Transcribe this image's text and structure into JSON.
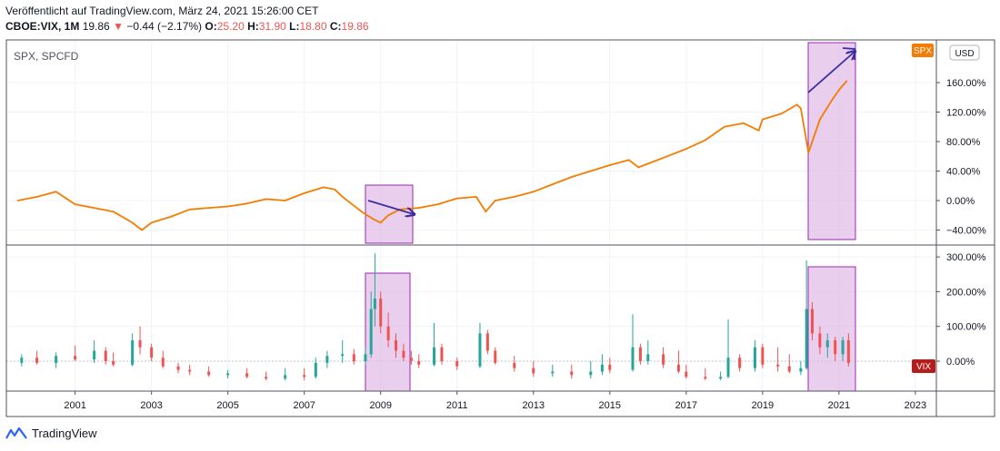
{
  "header": {
    "published_line": "Veröffentlicht auf TradingView.com, März 24, 2021 15:26:00 CET",
    "symbol": "CBOE:VIX, 1M",
    "last": "19.86",
    "change": "−0.44 (−2.17%)",
    "o_label": "O:",
    "o_value": "25.20",
    "h_label": "H:",
    "h_value": "31.90",
    "l_label": "L:",
    "l_value": "18.80",
    "c_label": "C:",
    "c_value": "19.86"
  },
  "top_pane": {
    "legend": "SPX, SPCFD",
    "currency_button": "USD",
    "price_tag": "SPX"
  },
  "bottom_pane": {
    "price_tag": "VIX"
  },
  "footer": {
    "brand": "TradingView"
  },
  "colors": {
    "spx_line": "#f57c00",
    "candle_up": "#26a69a",
    "candle_down": "#ef5350",
    "highlight_fill": "#e1bee7",
    "highlight_border": "#9c27b0",
    "arrow": "#3b2fa0",
    "vix_tag": "#b71c1c",
    "spx_tag": "#f57c00"
  },
  "chart_data": [
    {
      "type": "line",
      "title": "SPX, SPCFD",
      "x": [
        1999.5,
        2000.0,
        2000.5,
        2001.0,
        2001.5,
        2002.0,
        2002.5,
        2002.75,
        2003.0,
        2003.5,
        2004.0,
        2004.5,
        2005.0,
        2005.5,
        2006.0,
        2006.5,
        2007.0,
        2007.5,
        2007.8,
        2008.0,
        2008.5,
        2008.8,
        2009.0,
        2009.2,
        2009.5,
        2010.0,
        2010.5,
        2011.0,
        2011.5,
        2011.75,
        2012.0,
        2012.5,
        2013.0,
        2013.5,
        2014.0,
        2014.5,
        2015.0,
        2015.5,
        2015.75,
        2016.0,
        2016.5,
        2017.0,
        2017.5,
        2018.0,
        2018.5,
        2018.9,
        2019.0,
        2019.5,
        2019.9,
        2020.0,
        2020.2,
        2020.5,
        2020.8,
        2021.0,
        2021.2
      ],
      "series": [
        {
          "values": [
            0,
            5,
            12,
            -5,
            -10,
            -15,
            -30,
            -40,
            -30,
            -22,
            -12,
            -10,
            -8,
            -4,
            2,
            0,
            10,
            18,
            15,
            5,
            -15,
            -25,
            -30,
            -20,
            -12,
            -10,
            -5,
            3,
            5,
            -15,
            0,
            5,
            12,
            22,
            32,
            40,
            48,
            55,
            45,
            50,
            60,
            70,
            82,
            100,
            105,
            95,
            110,
            118,
            130,
            125,
            65,
            110,
            135,
            150,
            162
          ]
        }
      ],
      "y_ticks": [
        "−40.00%",
        "0.00%",
        "40.00%",
        "80.00%",
        "120.00%",
        "160.00%"
      ],
      "ylim": [
        -50,
        200
      ]
    },
    {
      "type": "bar",
      "title": "CBOE:VIX, 1M",
      "x_ticks": [
        "2001",
        "2003",
        "2005",
        "2007",
        "2009",
        "2011",
        "2013",
        "2015",
        "2017",
        "2019",
        "2021",
        "2023"
      ],
      "y_ticks": [
        "0.00%",
        "100.00%",
        "200.00%",
        "300.00%"
      ],
      "ylim": [
        -95,
        305
      ],
      "candles": [
        {
          "t": 1999.6,
          "o": -5,
          "h": 20,
          "l": -15,
          "c": 10
        },
        {
          "t": 2000.0,
          "o": 10,
          "h": 30,
          "l": -10,
          "c": -5
        },
        {
          "t": 2000.5,
          "o": -5,
          "h": 25,
          "l": -20,
          "c": 15
        },
        {
          "t": 2001.0,
          "o": 15,
          "h": 45,
          "l": 0,
          "c": 5
        },
        {
          "t": 2001.5,
          "o": 5,
          "h": 60,
          "l": -5,
          "c": 30
        },
        {
          "t": 2001.8,
          "o": 30,
          "h": 40,
          "l": -10,
          "c": 0
        },
        {
          "t": 2002.0,
          "o": 0,
          "h": 25,
          "l": -15,
          "c": -10
        },
        {
          "t": 2002.5,
          "o": -10,
          "h": 80,
          "l": -15,
          "c": 60
        },
        {
          "t": 2002.7,
          "o": 60,
          "h": 100,
          "l": 20,
          "c": 40
        },
        {
          "t": 2003.0,
          "o": 40,
          "h": 50,
          "l": 0,
          "c": 10
        },
        {
          "t": 2003.3,
          "o": 10,
          "h": 30,
          "l": -20,
          "c": -15
        },
        {
          "t": 2003.7,
          "o": -15,
          "h": -5,
          "l": -35,
          "c": -25
        },
        {
          "t": 2004.0,
          "o": -25,
          "h": -10,
          "l": -40,
          "c": -30
        },
        {
          "t": 2004.5,
          "o": -30,
          "h": -15,
          "l": -45,
          "c": -40
        },
        {
          "t": 2005.0,
          "o": -40,
          "h": -25,
          "l": -50,
          "c": -35
        },
        {
          "t": 2005.5,
          "o": -35,
          "h": -20,
          "l": -50,
          "c": -45
        },
        {
          "t": 2006.0,
          "o": -45,
          "h": -30,
          "l": -55,
          "c": -50
        },
        {
          "t": 2006.5,
          "o": -50,
          "h": -20,
          "l": -55,
          "c": -40
        },
        {
          "t": 2007.0,
          "o": -40,
          "h": -20,
          "l": -55,
          "c": -45
        },
        {
          "t": 2007.3,
          "o": -45,
          "h": 10,
          "l": -50,
          "c": -5
        },
        {
          "t": 2007.6,
          "o": -5,
          "h": 30,
          "l": -20,
          "c": 15
        },
        {
          "t": 2008.0,
          "o": 15,
          "h": 60,
          "l": -5,
          "c": 20
        },
        {
          "t": 2008.3,
          "o": 20,
          "h": 35,
          "l": -10,
          "c": 0
        },
        {
          "t": 2008.6,
          "o": 0,
          "h": 40,
          "l": -10,
          "c": 20
        },
        {
          "t": 2008.75,
          "o": 20,
          "h": 200,
          "l": 10,
          "c": 150
        },
        {
          "t": 2008.85,
          "o": 150,
          "h": 310,
          "l": 100,
          "c": 180
        },
        {
          "t": 2009.0,
          "o": 180,
          "h": 200,
          "l": 80,
          "c": 100
        },
        {
          "t": 2009.2,
          "o": 100,
          "h": 140,
          "l": 40,
          "c": 60
        },
        {
          "t": 2009.4,
          "o": 60,
          "h": 80,
          "l": 10,
          "c": 30
        },
        {
          "t": 2009.6,
          "o": 30,
          "h": 50,
          "l": 0,
          "c": 10
        },
        {
          "t": 2009.8,
          "o": 10,
          "h": 30,
          "l": -10,
          "c": 0
        },
        {
          "t": 2010.0,
          "o": 0,
          "h": 20,
          "l": -20,
          "c": -10
        },
        {
          "t": 2010.4,
          "o": -10,
          "h": 110,
          "l": -15,
          "c": 40
        },
        {
          "t": 2010.6,
          "o": 40,
          "h": 50,
          "l": -10,
          "c": 0
        },
        {
          "t": 2011.0,
          "o": 0,
          "h": 10,
          "l": -25,
          "c": -15
        },
        {
          "t": 2011.6,
          "o": -15,
          "h": 110,
          "l": -20,
          "c": 80
        },
        {
          "t": 2011.8,
          "o": 80,
          "h": 90,
          "l": 20,
          "c": 30
        },
        {
          "t": 2012.0,
          "o": 30,
          "h": 40,
          "l": -10,
          "c": -5
        },
        {
          "t": 2012.5,
          "o": -5,
          "h": 15,
          "l": -30,
          "c": -20
        },
        {
          "t": 2013.0,
          "o": -20,
          "h": 0,
          "l": -45,
          "c": -35
        },
        {
          "t": 2013.5,
          "o": -35,
          "h": -10,
          "l": -45,
          "c": -30
        },
        {
          "t": 2014.0,
          "o": -30,
          "h": -10,
          "l": -50,
          "c": -40
        },
        {
          "t": 2014.5,
          "o": -40,
          "h": 0,
          "l": -50,
          "c": -30
        },
        {
          "t": 2014.8,
          "o": -30,
          "h": 20,
          "l": -40,
          "c": -10
        },
        {
          "t": 2015.0,
          "o": -10,
          "h": 10,
          "l": -35,
          "c": -25
        },
        {
          "t": 2015.6,
          "o": -25,
          "h": 135,
          "l": -30,
          "c": 40
        },
        {
          "t": 2015.8,
          "o": 40,
          "h": 50,
          "l": -10,
          "c": 0
        },
        {
          "t": 2016.0,
          "o": 0,
          "h": 60,
          "l": -10,
          "c": 20
        },
        {
          "t": 2016.4,
          "o": 20,
          "h": 40,
          "l": -20,
          "c": -10
        },
        {
          "t": 2016.8,
          "o": -10,
          "h": 30,
          "l": -35,
          "c": -30
        },
        {
          "t": 2017.0,
          "o": -30,
          "h": -10,
          "l": -50,
          "c": -45
        },
        {
          "t": 2017.5,
          "o": -45,
          "h": -20,
          "l": -55,
          "c": -50
        },
        {
          "t": 2017.9,
          "o": -50,
          "h": -30,
          "l": -55,
          "c": -45
        },
        {
          "t": 2018.1,
          "o": -45,
          "h": 120,
          "l": -50,
          "c": 10
        },
        {
          "t": 2018.4,
          "o": 10,
          "h": 20,
          "l": -30,
          "c": -20
        },
        {
          "t": 2018.8,
          "o": -20,
          "h": 60,
          "l": -30,
          "c": 40
        },
        {
          "t": 2019.0,
          "o": 40,
          "h": 50,
          "l": -20,
          "c": -10
        },
        {
          "t": 2019.4,
          "o": -10,
          "h": 40,
          "l": -30,
          "c": -15
        },
        {
          "t": 2019.7,
          "o": -15,
          "h": 20,
          "l": -35,
          "c": -30
        },
        {
          "t": 2020.0,
          "o": -30,
          "h": 0,
          "l": -40,
          "c": -20
        },
        {
          "t": 2020.15,
          "o": -20,
          "h": 290,
          "l": -25,
          "c": 150
        },
        {
          "t": 2020.3,
          "o": 150,
          "h": 170,
          "l": 60,
          "c": 80
        },
        {
          "t": 2020.5,
          "o": 80,
          "h": 100,
          "l": 20,
          "c": 40
        },
        {
          "t": 2020.7,
          "o": 40,
          "h": 80,
          "l": 10,
          "c": 60
        },
        {
          "t": 2020.9,
          "o": 60,
          "h": 70,
          "l": 0,
          "c": 20
        },
        {
          "t": 2021.1,
          "o": 20,
          "h": 70,
          "l": 0,
          "c": 60
        },
        {
          "t": 2021.25,
          "o": 60,
          "h": 80,
          "l": -15,
          "c": -5
        }
      ]
    }
  ]
}
